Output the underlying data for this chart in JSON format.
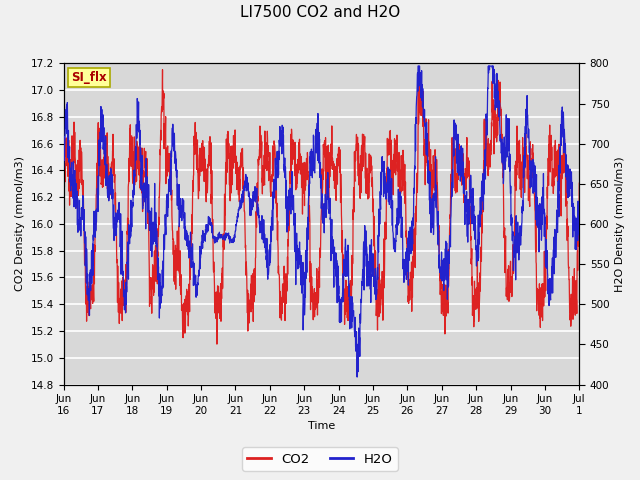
{
  "title": "LI7500 CO2 and H2O",
  "xlabel": "Time",
  "ylabel_left": "CO2 Density (mmol/m3)",
  "ylabel_right": "H2O Density (mmol/m3)",
  "ylim_left": [
    14.8,
    17.2
  ],
  "ylim_right": [
    400,
    800
  ],
  "yticks_left": [
    14.8,
    15.0,
    15.2,
    15.4,
    15.6,
    15.8,
    16.0,
    16.2,
    16.4,
    16.6,
    16.8,
    17.0,
    17.2
  ],
  "yticks_right": [
    400,
    450,
    500,
    550,
    600,
    650,
    700,
    750,
    800
  ],
  "xtick_labels": [
    "Jun\n16",
    "Jun\n17",
    "Jun\n18",
    "Jun\n19",
    "Jun\n20",
    "Jun\n21",
    "Jun\n22",
    "Jun\n23",
    "Jun\n24",
    "Jun\n25",
    "Jun\n26",
    "Jun\n27",
    "Jun\n28",
    "Jun\n29",
    "Jun\n30",
    "Jul\n1"
  ],
  "annotation_text": "SI_flx",
  "annotation_bgcolor": "#ffff99",
  "annotation_edgecolor": "#aaaa00",
  "legend_labels": [
    "CO2",
    "H2O"
  ],
  "co2_color": "#dd2222",
  "h2o_color": "#2222cc",
  "fig_bg_color": "#f0f0f0",
  "plot_bg_color": "#d8d8d8",
  "grid_color": "#ffffff",
  "title_fontsize": 11,
  "label_fontsize": 8,
  "tick_fontsize": 7.5,
  "line_width": 0.9
}
